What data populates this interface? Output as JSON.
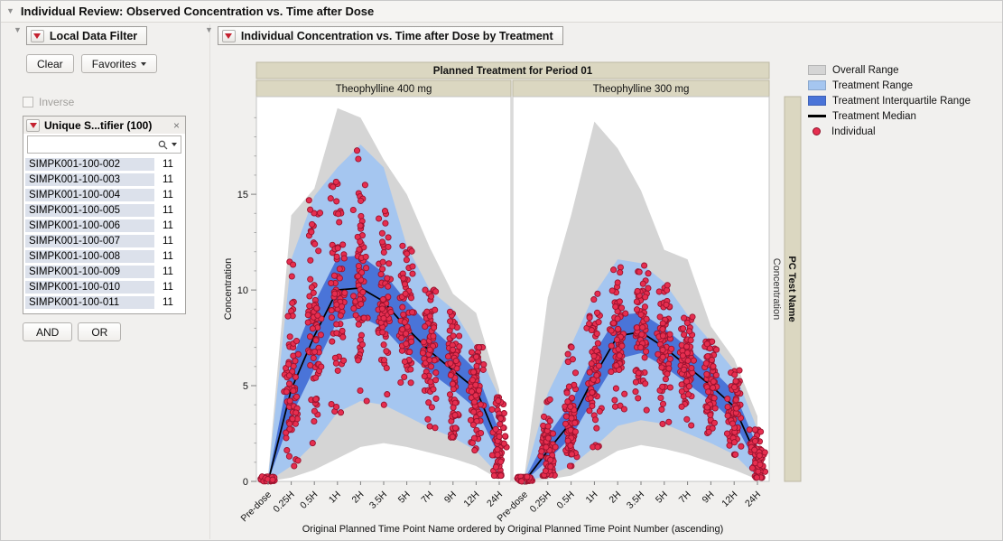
{
  "window": {
    "title": "Individual Review: Observed Concentration vs. Time after Dose"
  },
  "search": {
    "value": ""
  },
  "filter": {
    "title": "Local Data Filter",
    "clear_label": "Clear",
    "favorites_label": "Favorites",
    "inverse_label": "Inverse",
    "list_title": "Unique S...tifier (100)",
    "close_label": "×",
    "and_label": "AND",
    "or_label": "OR",
    "rows": [
      {
        "id": "SIMPK001-100-002",
        "count": "11"
      },
      {
        "id": "SIMPK001-100-003",
        "count": "11"
      },
      {
        "id": "SIMPK001-100-004",
        "count": "11"
      },
      {
        "id": "SIMPK001-100-005",
        "count": "11"
      },
      {
        "id": "SIMPK001-100-006",
        "count": "11"
      },
      {
        "id": "SIMPK001-100-007",
        "count": "11"
      },
      {
        "id": "SIMPK001-100-008",
        "count": "11"
      },
      {
        "id": "SIMPK001-100-009",
        "count": "11"
      },
      {
        "id": "SIMPK001-100-010",
        "count": "11"
      },
      {
        "id": "SIMPK001-100-011",
        "count": "11"
      }
    ]
  },
  "report": {
    "title": "Individual Concentration vs. Time after Dose by Treatment",
    "legend": [
      {
        "label": "Overall Range",
        "type": "box",
        "color": "#d5d5d5"
      },
      {
        "label": "Treatment Range",
        "type": "box",
        "color": "#a5c6f0"
      },
      {
        "label": "Treatment Interquartile Range",
        "type": "box",
        "color": "#4a74d8"
      },
      {
        "label": "Treatment Median",
        "type": "line",
        "color": "#000000"
      },
      {
        "label": "Individual",
        "type": "dot",
        "color": "#e62e4f"
      }
    ]
  },
  "chart_data": {
    "type": "area",
    "title": "Planned Treatment for Period 01",
    "xlabel": "Original Planned Time Point Name ordered by Original Planned Time Point Number (ascending)",
    "ylabel": "Concentration",
    "right_axis_label": "Concentration",
    "right_band_label": "PC Test Name",
    "categories": [
      "Pre-dose",
      "0.25H",
      "0.5H",
      "1H",
      "2H",
      "3.5H",
      "5H",
      "7H",
      "9H",
      "12H",
      "24H"
    ],
    "y_ticks": [
      0,
      5,
      10,
      15
    ],
    "ylim": [
      0,
      20.1
    ],
    "points_per_timepoint": 70,
    "colors": {
      "overall_range": "#d5d5d5",
      "treatment_range": "#a5c6f0",
      "iqr": "#4a74d8",
      "median": "#000000",
      "individual_fill": "#e62e4f",
      "individual_stroke": "#99122e",
      "band_header_bg": "#dbd7c1",
      "band_header_border": "#bdb9a2"
    },
    "panels": [
      {
        "label": "Theophylline 400 mg",
        "overall_high": [
          0.3,
          13.9,
          15.3,
          19.5,
          19.0,
          16.8,
          15.0,
          12.2,
          9.8,
          8.8,
          4.8
        ],
        "overall_low": [
          0,
          0.2,
          0.6,
          1.2,
          1.8,
          2.0,
          1.8,
          1.5,
          1.2,
          0.8,
          0.1
        ],
        "treat_high": [
          0.2,
          11.6,
          14.9,
          16.4,
          17.6,
          16.4,
          12.3,
          10.0,
          9.0,
          7.0,
          4.4
        ],
        "treat_low": [
          0,
          0.8,
          2.0,
          3.6,
          4.2,
          4.0,
          3.4,
          2.8,
          2.3,
          1.6,
          0.3
        ],
        "iqr_high": [
          0.1,
          6.3,
          9.3,
          11.7,
          11.8,
          10.9,
          9.4,
          8.1,
          7.0,
          5.8,
          2.6
        ],
        "iqr_low": [
          0,
          3.4,
          5.9,
          8.4,
          8.6,
          8.0,
          6.7,
          5.7,
          4.8,
          3.8,
          1.3
        ],
        "median": [
          0,
          4.8,
          7.6,
          10.0,
          10.1,
          9.4,
          8.0,
          6.8,
          5.8,
          4.8,
          1.9
        ]
      },
      {
        "label": "Theophylline 300 mg",
        "overall_high": [
          0.3,
          9.6,
          13.9,
          18.8,
          17.4,
          15.2,
          12.1,
          11.6,
          8.1,
          6.4,
          3.4
        ],
        "overall_low": [
          0,
          0.1,
          0.3,
          0.9,
          1.6,
          1.9,
          1.7,
          1.4,
          1.0,
          0.6,
          0.1
        ],
        "treat_high": [
          0.2,
          4.6,
          7.1,
          9.8,
          11.6,
          11.4,
          10.4,
          8.7,
          7.3,
          5.8,
          2.7
        ],
        "treat_low": [
          0,
          0.3,
          0.8,
          1.8,
          2.9,
          3.2,
          3.0,
          2.5,
          2.0,
          1.4,
          0.2
        ],
        "iqr_high": [
          0.1,
          2.4,
          4.1,
          6.7,
          8.7,
          8.8,
          8.0,
          7.0,
          5.9,
          4.7,
          1.8
        ],
        "iqr_low": [
          0,
          1.1,
          2.3,
          4.4,
          6.4,
          6.7,
          6.0,
          5.1,
          4.2,
          3.1,
          0.8
        ],
        "median": [
          0,
          1.6,
          3.1,
          5.5,
          7.6,
          7.8,
          7.0,
          6.0,
          5.0,
          3.9,
          1.2
        ]
      }
    ]
  }
}
